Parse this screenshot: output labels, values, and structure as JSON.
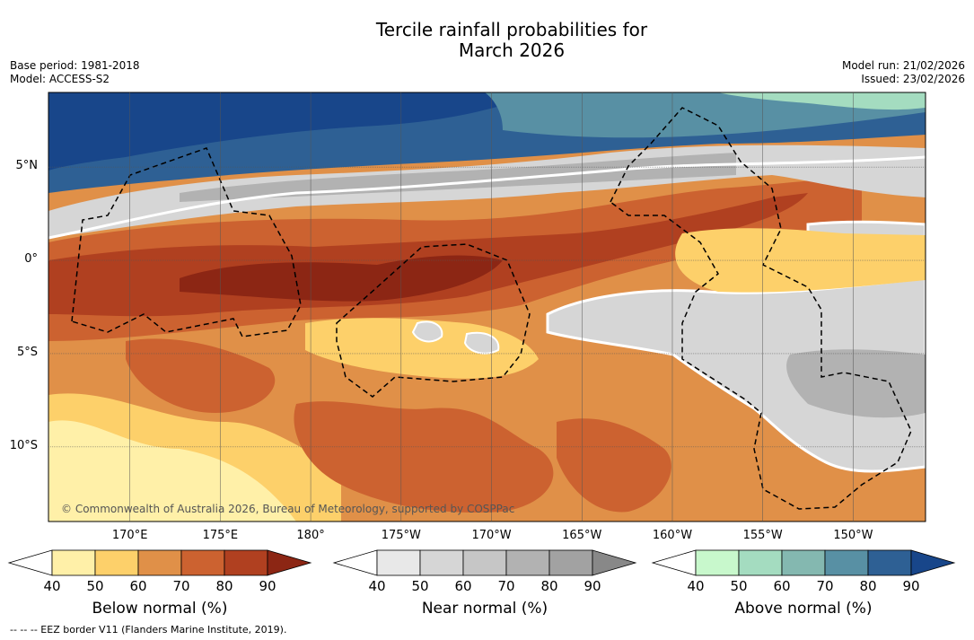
{
  "chart_data": {
    "type": "heatmap",
    "title_line1": "Tercile rainfall probabilities for",
    "title_line2": "March 2026",
    "base_period": "Base period: 1981-2018",
    "model": "Model: ACCESS-S2",
    "model_run": "Model run: 21/02/2026",
    "issued": "Issued: 23/02/2026",
    "copyright": "© Commonwealth of Australia 2026, Bureau of Meteorology, supported by COSPPac",
    "footnote": "--  --  -- EEZ border V11 (Flanders Marine Institute, 2019).",
    "lon_range": [
      165.5,
      -146
    ],
    "lat_range": [
      -14,
      9
    ],
    "lat_ticks": [
      {
        "value": 5,
        "label": "5°N"
      },
      {
        "value": 0,
        "label": "0°"
      },
      {
        "value": -5,
        "label": "5°S"
      },
      {
        "value": -10,
        "label": "10°S"
      }
    ],
    "lon_ticks": [
      {
        "value": 170,
        "label": "170°E"
      },
      {
        "value": 175,
        "label": "175°E"
      },
      {
        "value": 180,
        "label": "180°"
      },
      {
        "value": 185,
        "label": "175°W"
      },
      {
        "value": 190,
        "label": "170°W"
      },
      {
        "value": 195,
        "label": "165°W"
      },
      {
        "value": 200,
        "label": "160°W"
      },
      {
        "value": 205,
        "label": "155°W"
      },
      {
        "value": 210,
        "label": "150°W"
      }
    ],
    "colorbars": [
      {
        "name": "Below normal (%)",
        "ticks": [
          "40",
          "50",
          "60",
          "70",
          "80",
          "90"
        ],
        "colors": [
          "#fff0a8",
          "#fdd06a",
          "#e09048",
          "#cc6230",
          "#b04020",
          "#8c2614"
        ]
      },
      {
        "name": "Near normal (%)",
        "ticks": [
          "40",
          "50",
          "60",
          "70",
          "80",
          "90"
        ],
        "colors": [
          "#e8e8e8",
          "#d6d6d6",
          "#c6c6c6",
          "#b2b2b2",
          "#a2a2a2",
          "#888888"
        ]
      },
      {
        "name": "Above normal (%)",
        "ticks": [
          "40",
          "50",
          "60",
          "70",
          "80",
          "90"
        ],
        "colors": [
          "#c8f8cc",
          "#a4dcc0",
          "#84b8b0",
          "#5890a4",
          "#2e6094",
          "#18468a"
        ]
      }
    ],
    "field_description": [
      {
        "region": "north band ~5-9N",
        "category": "Above normal",
        "probability": 80
      },
      {
        "region": "~3-5N",
        "category": "Near normal",
        "probability": 60
      },
      {
        "region": "equator 0-3N",
        "category": "Below normal",
        "probability": 70
      },
      {
        "region": "west equatorial",
        "category": "Below normal",
        "probability": 80
      },
      {
        "region": "southeast 155-146W 3-12S",
        "category": "Near normal",
        "probability": 60
      },
      {
        "region": "southwest corner",
        "category": "Below normal",
        "probability": 50
      }
    ]
  },
  "colors": {
    "frame": "#000000",
    "grid": "#555555"
  }
}
